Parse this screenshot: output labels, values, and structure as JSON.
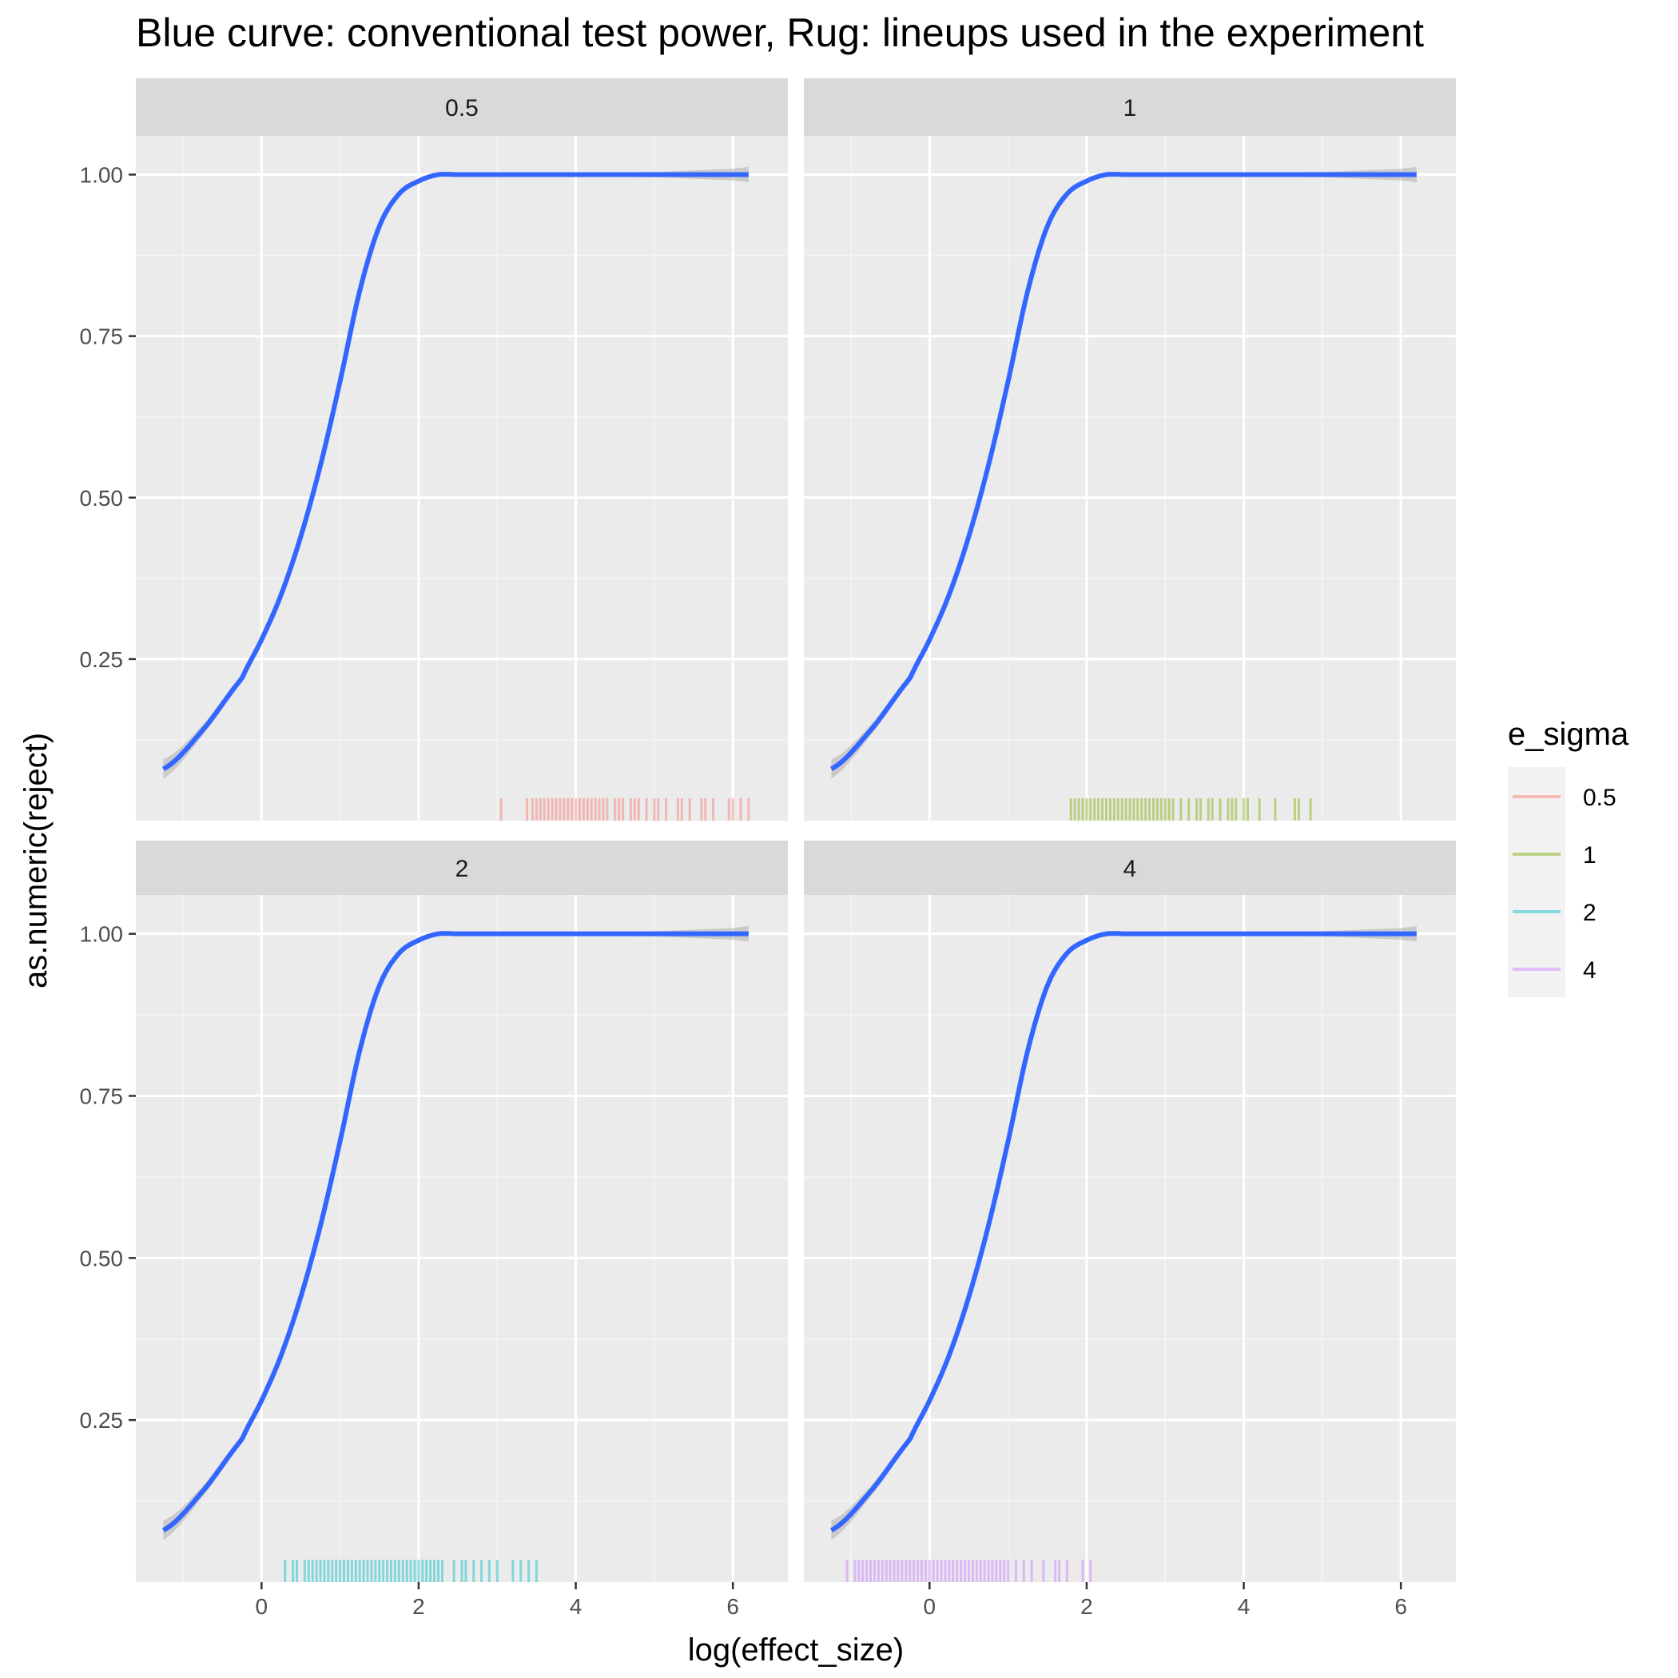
{
  "chart_data": {
    "type": "line",
    "title": "Blue curve: conventional test power, Rug: lineups used in the experiment",
    "xlabel": "log(effect_size)",
    "ylabel": "as.numeric(reject)",
    "xlim": [
      -1.6,
      6.7
    ],
    "ylim": [
      0,
      1.06
    ],
    "x_ticks": [
      0,
      2,
      4,
      6
    ],
    "x_tick_labels": [
      "0",
      "2",
      "4",
      "6"
    ],
    "y_ticks": [
      0.25,
      0.5,
      0.75,
      1.0
    ],
    "y_tick_labels": [
      "0.25",
      "0.50",
      "0.75",
      "1.00"
    ],
    "grid": true,
    "facet_variable": "e_sigma",
    "legend": {
      "title": "e_sigma",
      "position": "right",
      "entries": [
        {
          "label": "0.5",
          "color": "#F8766D"
        },
        {
          "label": "1",
          "color": "#7CAE00"
        },
        {
          "label": "2",
          "color": "#00BFC4"
        },
        {
          "label": "4",
          "color": "#C77CFF"
        }
      ]
    },
    "curve_color": "#3366FF",
    "curve": {
      "x": [
        -1.25,
        -0.75,
        -0.25,
        0.0,
        0.25,
        0.5,
        0.75,
        1.0,
        1.25,
        1.5,
        1.75,
        2.0,
        2.25,
        2.5,
        3.0,
        3.5,
        4.0,
        5.0,
        6.0,
        6.2
      ],
      "y": [
        0.08,
        0.14,
        0.22,
        0.28,
        0.35,
        0.44,
        0.55,
        0.68,
        0.82,
        0.92,
        0.97,
        0.99,
        1.0,
        1.0,
        1.0,
        1.0,
        1.0,
        1.0,
        1.0,
        1.0
      ],
      "ci_halfwidth": [
        0.015,
        0.008,
        0.006,
        0.006,
        0.006,
        0.006,
        0.006,
        0.006,
        0.006,
        0.006,
        0.005,
        0.004,
        0.003,
        0.003,
        0.003,
        0.003,
        0.003,
        0.004,
        0.009,
        0.012
      ]
    },
    "panels": [
      {
        "strip": "0.5",
        "rug_color": "#F8766D",
        "rug_x": [
          3.05,
          3.38,
          3.45,
          3.5,
          3.55,
          3.6,
          3.65,
          3.7,
          3.75,
          3.8,
          3.85,
          3.9,
          3.95,
          4.0,
          4.05,
          4.1,
          4.15,
          4.2,
          4.25,
          4.3,
          4.35,
          4.4,
          4.5,
          4.55,
          4.6,
          4.7,
          4.75,
          4.8,
          4.9,
          5.0,
          5.05,
          5.15,
          5.3,
          5.35,
          5.45,
          5.6,
          5.65,
          5.75,
          5.95,
          6.0,
          6.1,
          6.2
        ]
      },
      {
        "strip": "1",
        "rug_color": "#7CAE00",
        "rug_x": [
          1.8,
          1.85,
          1.9,
          1.95,
          2.0,
          2.05,
          2.1,
          2.15,
          2.2,
          2.25,
          2.3,
          2.35,
          2.4,
          2.45,
          2.5,
          2.55,
          2.6,
          2.65,
          2.7,
          2.75,
          2.8,
          2.85,
          2.9,
          2.95,
          3.0,
          3.05,
          3.1,
          3.2,
          3.3,
          3.4,
          3.45,
          3.55,
          3.6,
          3.7,
          3.8,
          3.85,
          3.9,
          4.0,
          4.05,
          4.2,
          4.4,
          4.65,
          4.7,
          4.85
        ]
      },
      {
        "strip": "2",
        "rug_color": "#00BFC4",
        "rug_x": [
          0.3,
          0.4,
          0.45,
          0.55,
          0.6,
          0.65,
          0.7,
          0.75,
          0.8,
          0.85,
          0.9,
          0.95,
          1.0,
          1.05,
          1.1,
          1.15,
          1.2,
          1.25,
          1.3,
          1.35,
          1.4,
          1.45,
          1.5,
          1.55,
          1.6,
          1.65,
          1.7,
          1.75,
          1.8,
          1.85,
          1.9,
          1.95,
          2.0,
          2.05,
          2.1,
          2.15,
          2.2,
          2.25,
          2.3,
          2.45,
          2.55,
          2.6,
          2.7,
          2.8,
          2.9,
          3.0,
          3.2,
          3.3,
          3.4,
          3.5
        ]
      },
      {
        "strip": "4",
        "rug_color": "#C77CFF",
        "rug_x": [
          -1.05,
          -0.95,
          -0.9,
          -0.85,
          -0.8,
          -0.75,
          -0.7,
          -0.65,
          -0.6,
          -0.55,
          -0.5,
          -0.45,
          -0.4,
          -0.35,
          -0.3,
          -0.25,
          -0.2,
          -0.15,
          -0.1,
          -0.05,
          0.0,
          0.05,
          0.1,
          0.15,
          0.2,
          0.25,
          0.3,
          0.35,
          0.4,
          0.45,
          0.5,
          0.55,
          0.6,
          0.65,
          0.7,
          0.75,
          0.8,
          0.85,
          0.9,
          0.95,
          1.0,
          1.1,
          1.2,
          1.3,
          1.45,
          1.6,
          1.65,
          1.75,
          1.95,
          2.05
        ]
      }
    ]
  }
}
